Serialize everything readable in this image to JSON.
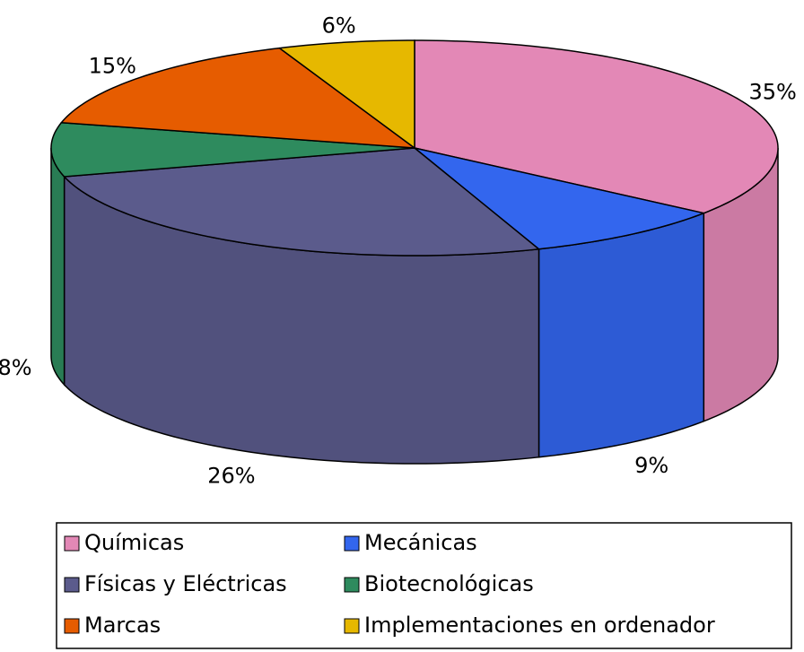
{
  "chart_data": {
    "type": "pie3d",
    "categories": [
      "Químicas",
      "Mecánicas",
      "Físicas y Eléctricas",
      "Biotecnológicas",
      "Marcas",
      "Implementaciones en ordenador"
    ],
    "values": [
      35,
      9,
      26,
      8,
      15,
      6
    ],
    "value_labels": [
      "35%",
      "9%",
      "26%",
      "8%",
      "15%",
      "6%"
    ],
    "colors": [
      "#e388b6",
      "#3366ee",
      "#5b5b8c",
      "#2e8b5e",
      "#e65c00",
      "#e6b800"
    ],
    "legend": "bottom"
  }
}
